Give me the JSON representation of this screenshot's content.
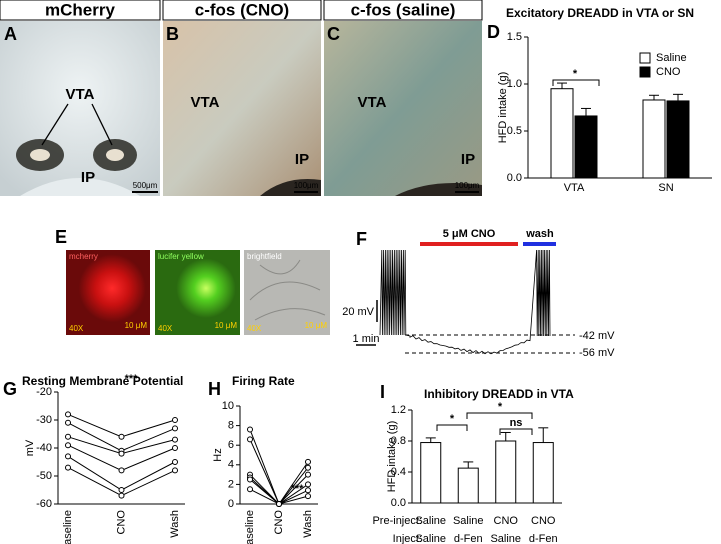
{
  "panels": {
    "A": {
      "letter": "A",
      "header": "mCherry",
      "labels": [
        "VTA",
        "IP"
      ],
      "scale_bar": "500μm"
    },
    "B": {
      "letter": "B",
      "header": "c-fos (CNO)",
      "labels": [
        "VTA",
        "IP"
      ],
      "scale_bar": "100μm"
    },
    "C": {
      "letter": "C",
      "header": "c-fos (saline)",
      "labels": [
        "VTA",
        "IP"
      ],
      "scale_bar": "100μm"
    },
    "E": {
      "letter": "E",
      "images": [
        {
          "label": "mcherry",
          "magnification": "40X",
          "scale_bar": "10 μM"
        },
        {
          "label": "lucifer yellow",
          "magnification": "40X",
          "scale_bar": "10 μM"
        },
        {
          "label": "brightfield",
          "magnification": "40X",
          "scale_bar": "10 μM"
        }
      ]
    },
    "F": {
      "letter": "F",
      "drug": "5 μM CNO",
      "wash": "wash",
      "v_scale": "20 mV",
      "t_scale": "1 min",
      "levels": [
        "-42 mV",
        "-56 mV"
      ]
    }
  },
  "chart_data": [
    {
      "type": "bar",
      "letter": "D",
      "title": "Excitatory DREADD in VTA or SN",
      "ylabel": "HFD intake (g)",
      "categories": [
        "VTA",
        "SN"
      ],
      "series": [
        {
          "name": "Saline",
          "color": "#ffffff",
          "values": [
            0.95,
            0.83
          ],
          "errors": [
            0.06,
            0.05
          ]
        },
        {
          "name": "CNO",
          "color": "#000000",
          "values": [
            0.66,
            0.82
          ],
          "errors": [
            0.08,
            0.07
          ]
        }
      ],
      "ylim": [
        0,
        1.5
      ],
      "yticks": [
        {
          "value": 0,
          "label": "0.0"
        },
        {
          "value": 0.5,
          "label": "0.5"
        },
        {
          "value": 1,
          "label": "1.0"
        },
        {
          "value": 1.5,
          "label": "1.5"
        }
      ],
      "annotations": [
        "*"
      ]
    },
    {
      "type": "line",
      "letter": "G",
      "title": "Resting Membrane Potential",
      "ylabel": "mV",
      "categories": [
        "Baseline",
        "CNO",
        "Wash"
      ],
      "color": "#000000",
      "series": [
        {
          "values": [
            -28,
            -36,
            -30
          ]
        },
        {
          "values": [
            -31,
            -41,
            -33
          ]
        },
        {
          "values": [
            -36,
            -42,
            -37
          ]
        },
        {
          "values": [
            -39,
            -48,
            -40
          ]
        },
        {
          "values": [
            -43,
            -55,
            -45
          ]
        },
        {
          "values": [
            -47,
            -57,
            -48
          ]
        }
      ],
      "ylim": [
        -60,
        -20
      ],
      "yticks": [
        -60,
        -50,
        -40,
        -30,
        -20
      ],
      "annotations": [
        "***"
      ]
    },
    {
      "type": "line",
      "letter": "H",
      "title": "Firing Rate",
      "ylabel": "Hz",
      "categories": [
        "Baseline",
        "CNO",
        "Wash"
      ],
      "color": "#000000",
      "series": [
        {
          "values": [
            7.6,
            0,
            4.3
          ]
        },
        {
          "values": [
            6.6,
            0,
            3.7
          ]
        },
        {
          "values": [
            3.0,
            0,
            3.0
          ]
        },
        {
          "values": [
            2.7,
            0,
            2.0
          ]
        },
        {
          "values": [
            2.5,
            0,
            1.4
          ]
        },
        {
          "values": [
            1.5,
            0,
            0.8
          ]
        }
      ],
      "ylim": [
        0,
        10
      ],
      "yticks": [
        0,
        2,
        4,
        6,
        8,
        10
      ],
      "annotations": [
        "***"
      ]
    },
    {
      "type": "bar",
      "letter": "I",
      "title": "Inhibitory DREADD in VTA",
      "ylabel": "HFD intake (g)",
      "color": "#ffffff",
      "category_rows": [
        {
          "label": "Pre-inject:",
          "values": [
            "Saline",
            "Saline",
            "CNO",
            "CNO"
          ]
        },
        {
          "label": "Inject:",
          "values": [
            "Saline",
            "d-Fen",
            "Saline",
            "d-Fen"
          ]
        }
      ],
      "values": [
        0.78,
        0.45,
        0.8,
        0.78
      ],
      "errors": [
        0.06,
        0.08,
        0.11,
        0.19
      ],
      "ylim": [
        0,
        1.2
      ],
      "yticks": [
        {
          "value": 0,
          "label": "0.0"
        },
        {
          "value": 0.4,
          "label": "0.4"
        },
        {
          "value": 0.8,
          "label": "0.8"
        },
        {
          "value": 1.2,
          "label": "1.2"
        }
      ],
      "annotations": [
        "*",
        "*",
        "ns"
      ]
    }
  ]
}
